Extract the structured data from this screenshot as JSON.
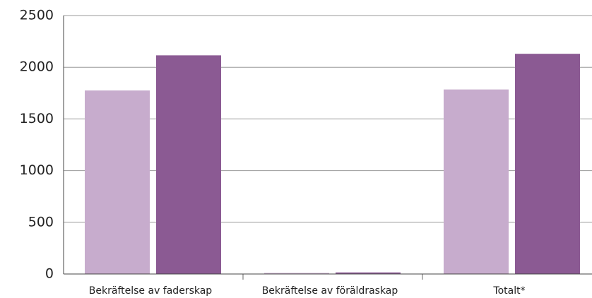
{
  "chart_data": {
    "type": "bar",
    "categories": [
      "Bekräftelse av faderskap",
      "Bekräftelse av föräldraskap",
      "Totalt*"
    ],
    "series": [
      {
        "color": "#c7accd",
        "values": [
          1775,
          10,
          1785
        ]
      },
      {
        "color": "#8b5a93",
        "values": [
          2115,
          15,
          2130
        ]
      }
    ],
    "ylim": [
      0,
      2500
    ],
    "yticks": [
      0,
      500,
      1000,
      1500,
      2000,
      2500
    ],
    "grid": true
  }
}
